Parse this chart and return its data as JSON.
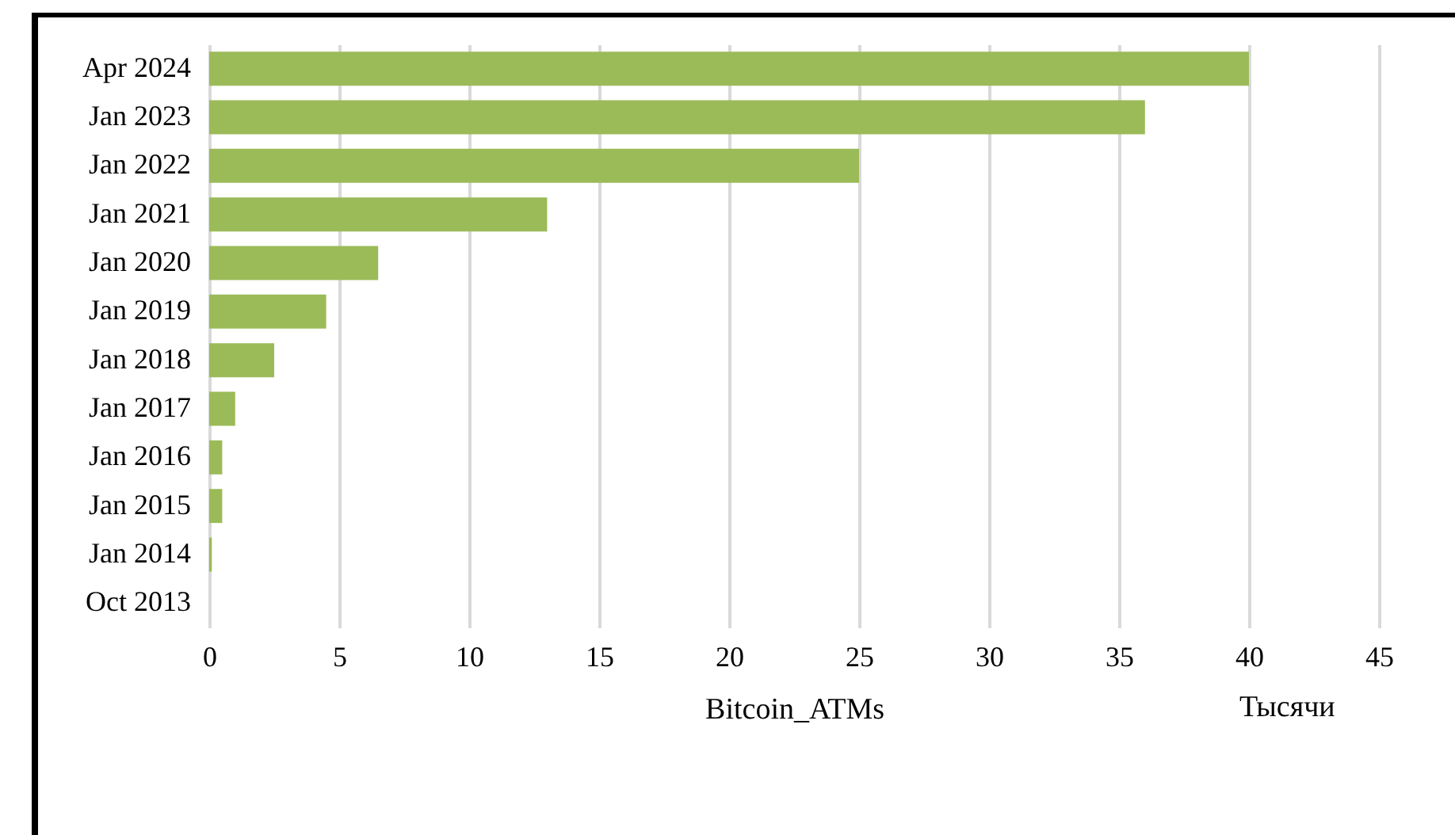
{
  "chart_data": {
    "type": "bar",
    "orientation": "horizontal",
    "categories": [
      "Apr 2024",
      "Jan 2023",
      "Jan 2022",
      "Jan 2021",
      "Jan 2020",
      "Jan 2019",
      "Jan 2018",
      "Jan 2017",
      "Jan 2016",
      "Jan 2015",
      "Jan 2014",
      "Oct 2013"
    ],
    "values": [
      40,
      36,
      25,
      13,
      6.5,
      4.5,
      2.5,
      1,
      0.5,
      0.5,
      0.1,
      0
    ],
    "color": "#9bbb59",
    "xlabel": "Bitcoin_ATMs",
    "xlim": [
      0,
      45
    ],
    "xticks": [
      0,
      5,
      10,
      15,
      20,
      25,
      30,
      35,
      40,
      45
    ],
    "grid": "x",
    "annotations": [
      "Тысячи"
    ]
  }
}
